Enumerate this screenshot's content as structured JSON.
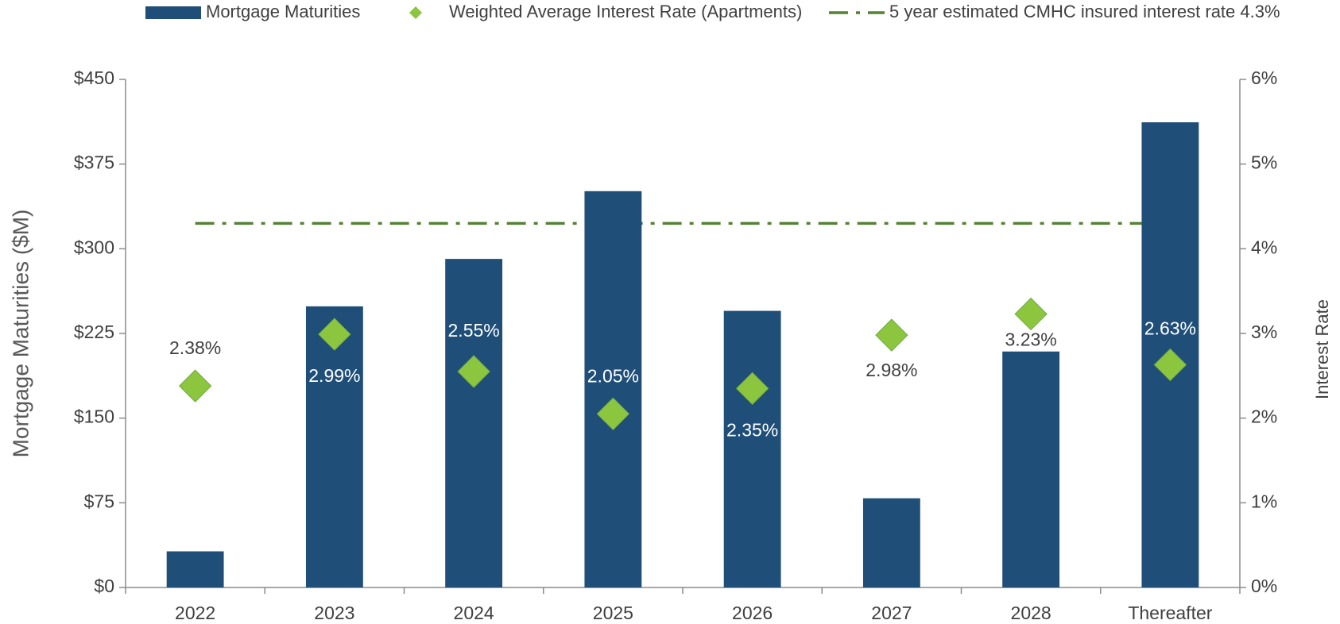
{
  "chart_data": {
    "type": "bar",
    "categories": [
      "2022",
      "2023",
      "2024",
      "2025",
      "2026",
      "2027",
      "2028",
      "Thereafter"
    ],
    "series": [
      {
        "name": "Mortgage Maturities",
        "type": "bar",
        "color": "#1f4e79",
        "values": [
          32,
          249,
          291,
          351,
          245,
          79,
          209,
          412
        ]
      },
      {
        "name": "Weighted Average Interest Rate (Apartments)",
        "type": "scatter",
        "axis": "y2",
        "color": "#8cc63f",
        "values": [
          2.38,
          2.99,
          2.55,
          2.05,
          2.35,
          2.98,
          3.23,
          2.63
        ],
        "value_labels": [
          "2.38%",
          "2.99%",
          "2.55%",
          "2.05%",
          "2.35%",
          "2.98%",
          "3.23%",
          "2.63%"
        ]
      }
    ],
    "reference_line": {
      "name": "5 year estimated CMHC insured interest rate 4.3%",
      "value": 4.3,
      "axis": "y2",
      "color": "#548235"
    },
    "ylabel": "Mortgage Maturities ($M)",
    "y2label": "Interest Rate",
    "ylim": [
      0,
      450
    ],
    "yticks": [
      {
        "value": 0,
        "label": "$0"
      },
      {
        "value": 75,
        "label": "$75"
      },
      {
        "value": 150,
        "label": "$150"
      },
      {
        "value": 225,
        "label": "$225"
      },
      {
        "value": 300,
        "label": "$300"
      },
      {
        "value": 375,
        "label": "$375"
      },
      {
        "value": 450,
        "label": "$450"
      }
    ],
    "y2lim": [
      0,
      6
    ],
    "y2ticks": [
      {
        "value": 0,
        "label": "0%"
      },
      {
        "value": 1,
        "label": "1%"
      },
      {
        "value": 2,
        "label": "2%"
      },
      {
        "value": 3,
        "label": "3%"
      },
      {
        "value": 4,
        "label": "4%"
      },
      {
        "value": 5,
        "label": "5%"
      },
      {
        "value": 6,
        "label": "6%"
      }
    ],
    "legend": "top"
  }
}
